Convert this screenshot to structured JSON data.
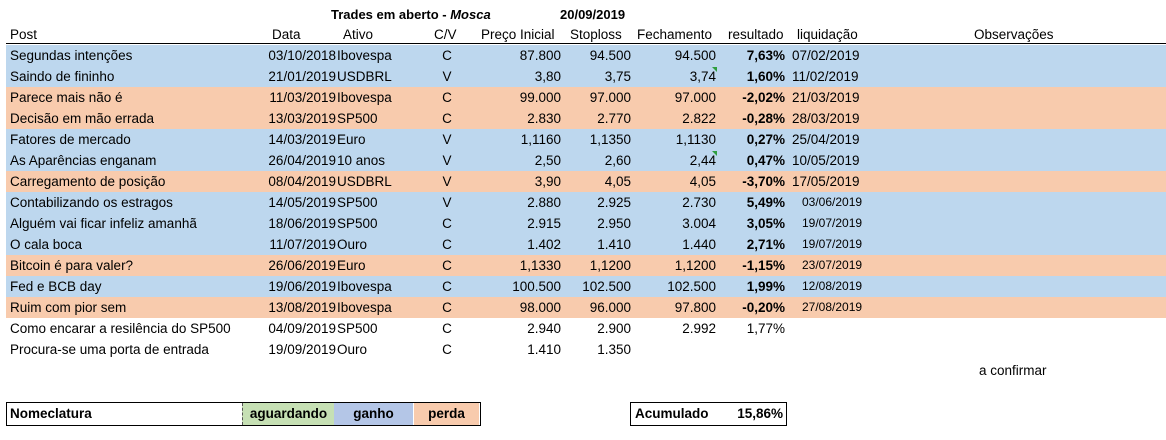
{
  "title": {
    "main": "Trades em aberto - ",
    "italic": "Mosca",
    "date": "20/09/2019"
  },
  "headers": {
    "post": "Post",
    "data": "Data",
    "ativo": "Ativo",
    "cv": "C/V",
    "preco": "Preço Inicial",
    "stop": "Stoploss",
    "fech": "Fechamento",
    "result": "resultado",
    "liq": "liquidação",
    "obs": "Observações"
  },
  "colors": {
    "ganho": "#bdd7ee",
    "perda": "#f8cbad",
    "aguardando": "#c6e0b4"
  },
  "rows": [
    {
      "post": "Segundas intenções",
      "data": "03/10/2018",
      "ativo": "Ibovespa",
      "cv": "C",
      "preco": "87.800",
      "stop": "94.500",
      "fech": "94.500",
      "result": "7,63%",
      "liq": "07/02/2019",
      "status": "ganho"
    },
    {
      "post": "Saindo de fininho",
      "data": "21/01/2019",
      "ativo": "USDBRL",
      "cv": "V",
      "preco": "3,80",
      "stop": "3,75",
      "fech": "3,74",
      "result": "1,60%",
      "liq": "11/02/2019",
      "status": "ganho"
    },
    {
      "post": "Parece mais não é",
      "data": "11/03/2019",
      "ativo": "Ibovespa",
      "cv": "C",
      "preco": "99.000",
      "stop": "97.000",
      "fech": "97.000",
      "result": "-2,02%",
      "liq": "21/03/2019",
      "status": "perda"
    },
    {
      "post": "Decisão em mão errada",
      "data": "13/03/2019",
      "ativo": "SP500",
      "cv": "C",
      "preco": "2.830",
      "stop": "2.770",
      "fech": "2.822",
      "result": "-0,28%",
      "liq": "28/03/2019",
      "status": "perda"
    },
    {
      "post": "Fatores de mercado",
      "data": "14/03/2019",
      "ativo": "Euro",
      "cv": "V",
      "preco": "1,1160",
      "stop": "1,1350",
      "fech": "1,1130",
      "result": "0,27%",
      "liq": "25/04/2019",
      "status": "ganho"
    },
    {
      "post": "As Aparências enganam",
      "data": "26/04/2019",
      "ativo": "10 anos",
      "cv": "V",
      "preco": "2,50",
      "stop": "2,60",
      "fech": "2,44",
      "result": "0,47%",
      "liq": "10/05/2019",
      "status": "ganho"
    },
    {
      "post": "Carregamento de posição",
      "data": "08/04/2019",
      "ativo": "USDBRL",
      "cv": "V",
      "preco": "3,90",
      "stop": "4,05",
      "fech": "4,05",
      "result": "-3,70%",
      "liq": "17/05/2019",
      "status": "perda"
    },
    {
      "post": "Contabilizando os estragos",
      "data": "14/05/2019",
      "ativo": "SP500",
      "cv": "V",
      "preco": "2.880",
      "stop": "2.925",
      "fech": "2.730",
      "result": "5,49%",
      "liq": "03/06/2019",
      "status": "ganho"
    },
    {
      "post": "Alguém vai ficar infeliz amanhã",
      "data": "18/06/2019",
      "ativo": "SP500",
      "cv": "C",
      "preco": "2.915",
      "stop": "2.950",
      "fech": "3.004",
      "result": "3,05%",
      "liq": "19/07/2019",
      "status": "ganho"
    },
    {
      "post": "O cala boca",
      "data": "11/07/2019",
      "ativo": "Ouro",
      "cv": "C",
      "preco": "1.402",
      "stop": "1.410",
      "fech": "1.440",
      "result": "2,71%",
      "liq": "19/07/2019",
      "status": "ganho"
    },
    {
      "post": "Bitcoin é para valer?",
      "data": "26/06/2019",
      "ativo": "Euro",
      "cv": "C",
      "preco": "1,1330",
      "stop": "1,1200",
      "fech": "1,1200",
      "result": "-1,15%",
      "liq": "23/07/2019",
      "status": "perda"
    },
    {
      "post": "Fed e BCB day",
      "data": "19/06/2019",
      "ativo": "Ibovespa",
      "cv": "C",
      "preco": "100.500",
      "stop": "102.500",
      "fech": "102.500",
      "result": "1,99%",
      "liq": "12/08/2019",
      "status": "ganho"
    },
    {
      "post": "Ruim com pior sem",
      "data": "13/08/2019",
      "ativo": "Ibovespa",
      "cv": "C",
      "preco": "98.000",
      "stop": "96.000",
      "fech": "97.800",
      "result": "-0,20%",
      "liq": "27/08/2019",
      "status": "perda"
    },
    {
      "post": "Como encarar a resilência do SP500",
      "data": "04/09/2019",
      "ativo": "SP500",
      "cv": "C",
      "preco": "2.940",
      "stop": "2.900",
      "fech": "2.992",
      "result": "1,77%",
      "liq": "",
      "status": "aberto"
    },
    {
      "post": "Procura-se uma porta de entrada",
      "data": "19/09/2019",
      "ativo": "Ouro",
      "cv": "C",
      "preco": "1.410",
      "stop": "1.350",
      "fech": "",
      "result": "",
      "liq": "",
      "status": "aberto"
    }
  ],
  "note": "a confirmar",
  "legend": {
    "label": "Nomeclatura",
    "aguardando": "aguardando",
    "ganho": "ganho",
    "perda": "perda"
  },
  "accum": {
    "label": "Acumulado",
    "value": "15,86%"
  }
}
